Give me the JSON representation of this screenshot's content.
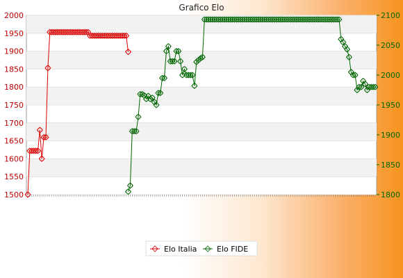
{
  "chart_data": {
    "type": "line",
    "title": "Grafico Elo",
    "legend_position": "bottom",
    "grid": true,
    "y_left": {
      "min": 1500,
      "max": 2000,
      "ticks": [
        1500,
        1550,
        1600,
        1650,
        1700,
        1750,
        1800,
        1850,
        1900,
        1950,
        2000
      ]
    },
    "y_right": {
      "min": 1800,
      "max": 2100,
      "ticks": [
        1800,
        1850,
        1900,
        1950,
        2000,
        2050,
        2100
      ]
    },
    "series": [
      {
        "name": "Elo Italia",
        "color": "#dd0000",
        "axis": "left",
        "values": [
          1500,
          1622,
          1622,
          1622,
          1622,
          1622,
          1680,
          1600,
          1660,
          1660,
          1853,
          1953,
          1953,
          1953,
          1953,
          1953,
          1953,
          1953,
          1953,
          1953,
          1953,
          1953,
          1953,
          1953,
          1953,
          1953,
          1953,
          1953,
          1953,
          1953,
          1953,
          1943,
          1943,
          1943,
          1943,
          1943,
          1943,
          1943,
          1943,
          1943,
          1943,
          1943,
          1943,
          1943,
          1943,
          1943,
          1943,
          1943,
          1943,
          1943,
          1898
        ]
      },
      {
        "name": "Elo FIDE",
        "color": "#006600",
        "axis": "right",
        "start_index": 50,
        "values": [
          1805,
          1815,
          1906,
          1906,
          1906,
          1930,
          1968,
          1968,
          1966,
          1960,
          1965,
          1960,
          1962,
          1955,
          1950,
          1970,
          1970,
          1995,
          1995,
          2040,
          2048,
          2023,
          2023,
          2023,
          2040,
          2040,
          2023,
          2000,
          2010,
          2000,
          2000,
          2000,
          2000,
          1982,
          2022,
          2025,
          2028,
          2030,
          2093,
          2093,
          2093,
          2093,
          2093,
          2093,
          2093,
          2093,
          2093,
          2093,
          2093,
          2093,
          2093,
          2093,
          2093,
          2093,
          2093,
          2093,
          2093,
          2093,
          2093,
          2093,
          2093,
          2093,
          2093,
          2093,
          2093,
          2093,
          2093,
          2093,
          2093,
          2093,
          2093,
          2093,
          2093,
          2093,
          2093,
          2093,
          2093,
          2093,
          2093,
          2093,
          2093,
          2093,
          2093,
          2093,
          2093,
          2093,
          2093,
          2093,
          2093,
          2093,
          2093,
          2093,
          2093,
          2093,
          2093,
          2093,
          2093,
          2093,
          2093,
          2093,
          2093,
          2093,
          2093,
          2093,
          2093,
          2093,
          2060,
          2055,
          2048,
          2043,
          2030,
          2005,
          2000,
          2000,
          1975,
          1980,
          1980,
          1990,
          1985,
          1975,
          1980,
          1980,
          1980,
          1980
        ]
      }
    ]
  }
}
